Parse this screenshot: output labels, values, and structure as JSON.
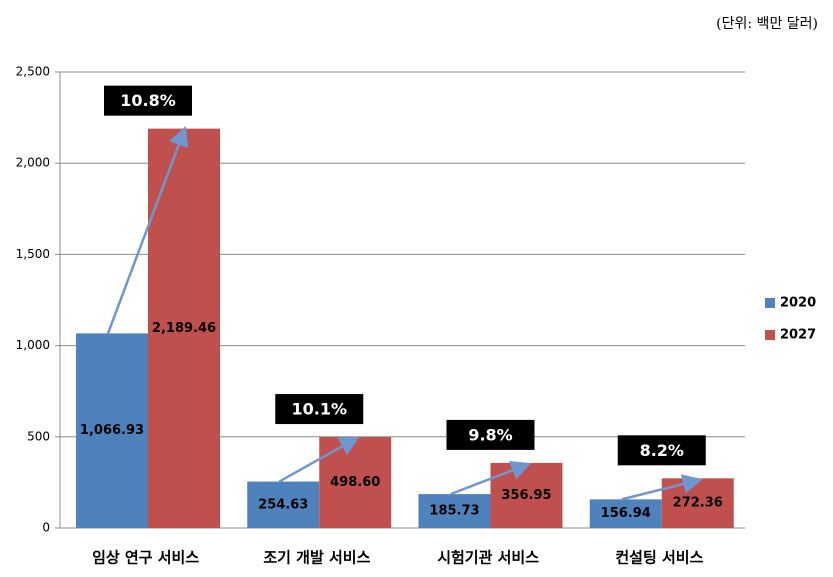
{
  "chart_data": {
    "type": "bar",
    "subtitle": "(단위: 백만 달러)",
    "categories": [
      "임상 연구 서비스",
      "조기 개발 서비스",
      "시험기관 서비스",
      "컨설팅 서비스"
    ],
    "series": [
      {
        "name": "2020",
        "color": "#4f81bd",
        "values": [
          1066.93,
          254.63,
          185.73,
          156.94
        ],
        "value_labels": [
          "1,066.93",
          "254.63",
          "185.73",
          "156.94"
        ]
      },
      {
        "name": "2027",
        "color": "#c0504d",
        "values": [
          2189.46,
          498.6,
          356.95,
          272.36
        ],
        "value_labels": [
          "2,189.46",
          "498.60",
          "356.95",
          "272.36"
        ]
      }
    ],
    "annotations": [
      "10.8%",
      "10.1%",
      "9.8%",
      "8.2%"
    ],
    "ylim": [
      0,
      2500
    ],
    "yticks": [
      0,
      500,
      {
        "value": 1000,
        "label": "1,000"
      },
      {
        "value": 1500,
        "label": "1,500"
      },
      {
        "value": 2000,
        "label": "2,000"
      },
      {
        "value": 2500,
        "label": "2,500"
      }
    ],
    "grid": true,
    "legend": "right"
  }
}
